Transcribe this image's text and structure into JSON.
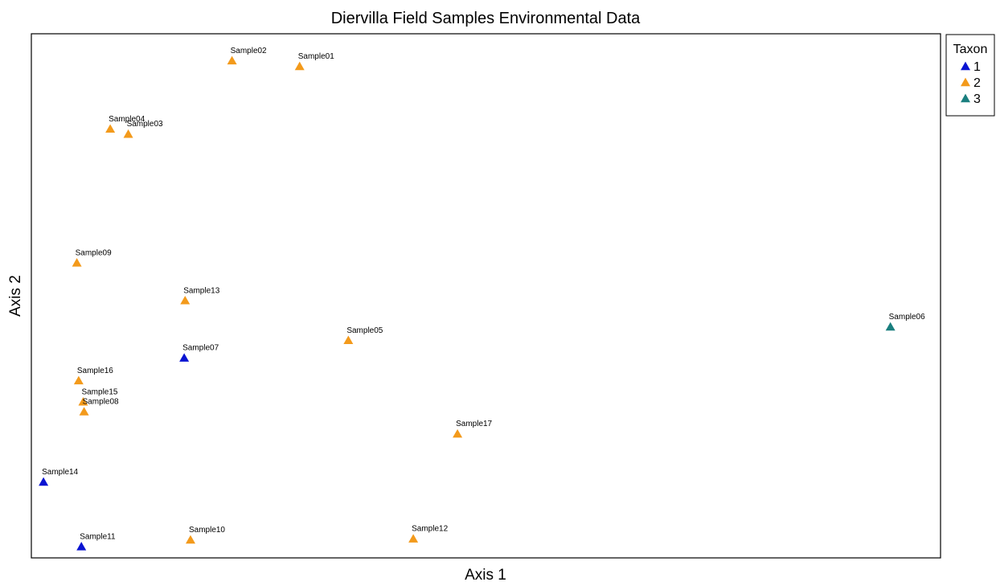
{
  "chart_data": {
    "type": "scatter",
    "title": "Diervilla Field Samples Environmental Data",
    "xlabel": "Axis 1",
    "ylabel": "Axis 2",
    "xlim": [
      0,
      100
    ],
    "ylim": [
      0,
      100
    ],
    "grid": false,
    "axis_ticks": false,
    "marker": "triangle",
    "legend": {
      "title": "Taxon",
      "placement": "right",
      "entries": [
        {
          "label": "1",
          "color": "#0a14d2"
        },
        {
          "label": "2",
          "color": "#f39a1b"
        },
        {
          "label": "3",
          "color": "#1a7f7f"
        }
      ]
    },
    "series": [
      {
        "name": "1",
        "color": "#0a14d2",
        "points": [
          {
            "label": "Sample07",
            "x": 16.5,
            "y": 38.0
          },
          {
            "label": "Sample14",
            "x": 0.9,
            "y": 14.0
          },
          {
            "label": "Sample11",
            "x": 5.1,
            "y": 1.5
          }
        ]
      },
      {
        "name": "2",
        "color": "#f39a1b",
        "points": [
          {
            "label": "Sample02",
            "x": 21.8,
            "y": 95.5
          },
          {
            "label": "Sample01",
            "x": 29.3,
            "y": 94.4
          },
          {
            "label": "Sample04",
            "x": 8.3,
            "y": 82.3
          },
          {
            "label": "Sample03",
            "x": 10.3,
            "y": 81.3
          },
          {
            "label": "Sample09",
            "x": 4.6,
            "y": 56.4
          },
          {
            "label": "Sample13",
            "x": 16.6,
            "y": 49.1
          },
          {
            "label": "Sample05",
            "x": 34.7,
            "y": 41.4
          },
          {
            "label": "Sample16",
            "x": 4.8,
            "y": 33.6
          },
          {
            "label": "Sample15",
            "x": 5.3,
            "y": 29.5
          },
          {
            "label": "Sample08",
            "x": 5.4,
            "y": 27.6
          },
          {
            "label": "Sample17",
            "x": 46.8,
            "y": 23.3
          },
          {
            "label": "Sample10",
            "x": 17.2,
            "y": 2.8
          },
          {
            "label": "Sample12",
            "x": 41.9,
            "y": 3.0
          }
        ]
      },
      {
        "name": "3",
        "color": "#1a7f7f",
        "points": [
          {
            "label": "Sample06",
            "x": 94.8,
            "y": 44.0
          }
        ]
      }
    ]
  }
}
